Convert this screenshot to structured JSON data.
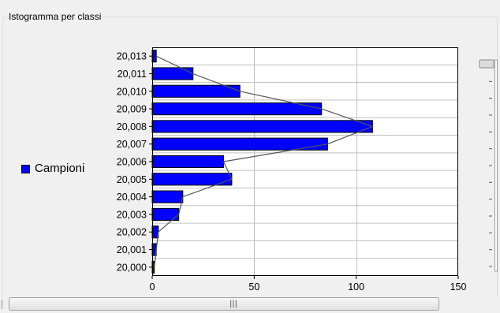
{
  "groupbox": {
    "title": "Istogramma per classi"
  },
  "legend": {
    "label": "Campioni",
    "color": "#0000ff"
  },
  "colors": {
    "bar_fill": "#0000ff",
    "bar_stroke": "#000000",
    "line": "#555555",
    "grid": "#c0c0c0",
    "plot_bg": "#ffffff"
  },
  "scrollbar": {
    "grip_glyph": "|||"
  },
  "slider": {
    "value_fraction": 1.0,
    "tick_count": 12
  },
  "chart_data": {
    "type": "bar",
    "orientation": "horizontal",
    "title": "",
    "xlabel": "",
    "ylabel": "",
    "categories": [
      "20,000",
      "20,001",
      "20,002",
      "20,003",
      "20,004",
      "20,005",
      "20,006",
      "20,007",
      "20,008",
      "20,009",
      "20,010",
      "20,011",
      "20,013"
    ],
    "series": [
      {
        "name": "Campioni",
        "values": [
          1,
          2,
          3,
          13,
          15,
          39,
          35,
          86,
          108,
          83,
          43,
          20,
          2
        ]
      }
    ],
    "overlay_line": true,
    "xlim": [
      0,
      150
    ],
    "xticks": [
      "0",
      "50",
      "100",
      "150"
    ],
    "grid": true,
    "legend_position": "left"
  }
}
